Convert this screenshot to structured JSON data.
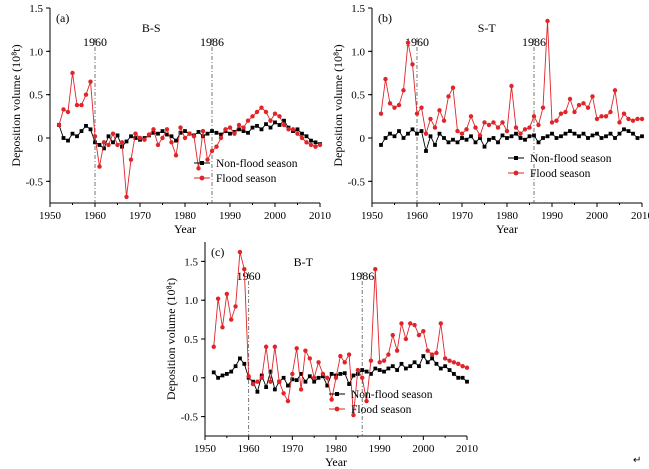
{
  "figure": {
    "trailing_mark": "↵"
  },
  "chart_data": [
    {
      "type": "line",
      "panel": "(a)",
      "title": "B-S",
      "xlabel": "Year",
      "ylabel": "Deposition volume (10⁸t)",
      "xlim": [
        1950,
        2010
      ],
      "ylim": [
        -0.75,
        1.5
      ],
      "xticks": [
        1950,
        1960,
        1970,
        1980,
        1990,
        2000,
        2010
      ],
      "yticks": [
        -0.5,
        0,
        0.5,
        1.0,
        1.5
      ],
      "ytick_labels": [
        "-0.5",
        "0",
        "0.5",
        "1.0",
        "1.5"
      ],
      "annotations": [
        {
          "x": 1960,
          "label": "1960"
        },
        {
          "x": 1986,
          "label": "1986"
        }
      ],
      "legend_position": "lower-right",
      "series": [
        {
          "name": "Non-flood season",
          "color": "#000000",
          "marker": "square",
          "x": [
            1952,
            1953,
            1954,
            1955,
            1956,
            1957,
            1958,
            1959,
            1960,
            1961,
            1962,
            1963,
            1964,
            1965,
            1966,
            1967,
            1968,
            1969,
            1970,
            1971,
            1972,
            1973,
            1974,
            1975,
            1976,
            1977,
            1978,
            1979,
            1980,
            1981,
            1982,
            1983,
            1984,
            1985,
            1986,
            1987,
            1988,
            1989,
            1990,
            1991,
            1992,
            1993,
            1994,
            1995,
            1996,
            1997,
            1998,
            1999,
            2000,
            2001,
            2002,
            2003,
            2004,
            2005,
            2006,
            2007,
            2008,
            2009,
            2010
          ],
          "y": [
            0.15,
            0.0,
            -0.03,
            0.05,
            0.02,
            0.08,
            0.14,
            0.1,
            -0.05,
            -0.08,
            -0.12,
            0.02,
            -0.05,
            0.03,
            -0.1,
            -0.04,
            0.02,
            0.0,
            -0.02,
            0.0,
            0.03,
            0.06,
            0.05,
            0.08,
            0.04,
            0.02,
            -0.03,
            0.06,
            0.08,
            0.05,
            0.03,
            0.07,
            0.02,
            0.05,
            0.08,
            0.06,
            0.04,
            0.08,
            0.05,
            0.07,
            0.1,
            0.08,
            0.06,
            0.12,
            0.14,
            0.1,
            0.16,
            0.12,
            0.18,
            0.15,
            0.2,
            0.12,
            0.08,
            0.1,
            0.05,
            0.02,
            -0.03,
            -0.05,
            -0.07
          ]
        },
        {
          "name": "Flood season",
          "color": "#e0252a",
          "marker": "circle",
          "x": [
            1952,
            1953,
            1954,
            1955,
            1956,
            1957,
            1958,
            1959,
            1960,
            1961,
            1962,
            1963,
            1964,
            1965,
            1966,
            1967,
            1968,
            1969,
            1970,
            1971,
            1972,
            1973,
            1974,
            1975,
            1976,
            1977,
            1978,
            1979,
            1980,
            1981,
            1982,
            1983,
            1984,
            1985,
            1986,
            1987,
            1988,
            1989,
            1990,
            1991,
            1992,
            1993,
            1994,
            1995,
            1996,
            1997,
            1998,
            1999,
            2000,
            2001,
            2002,
            2003,
            2004,
            2005,
            2006,
            2007,
            2008,
            2009,
            2010
          ],
          "y": [
            0.15,
            0.33,
            0.3,
            0.75,
            0.38,
            0.38,
            0.5,
            0.65,
            0.02,
            -0.33,
            -0.05,
            -0.08,
            0.05,
            -0.08,
            -0.05,
            -0.68,
            -0.25,
            0.05,
            0.0,
            -0.02,
            0.04,
            0.1,
            -0.08,
            0.0,
            0.1,
            -0.05,
            -0.2,
            0.12,
            0.0,
            0.05,
            0.02,
            -0.35,
            0.08,
            -0.25,
            -0.15,
            -0.1,
            0.0,
            0.1,
            0.12,
            0.05,
            0.15,
            0.12,
            0.2,
            0.25,
            0.3,
            0.35,
            0.3,
            0.2,
            0.28,
            0.25,
            0.15,
            0.1,
            0.1,
            0.05,
            0.0,
            -0.05,
            -0.08,
            -0.1,
            -0.08
          ]
        }
      ]
    },
    {
      "type": "line",
      "panel": "(b)",
      "title": "S-T",
      "xlabel": "Year",
      "ylabel": "Deposition volume (10⁸t)",
      "xlim": [
        1950,
        2010
      ],
      "ylim": [
        -0.75,
        1.5
      ],
      "xticks": [
        1950,
        1960,
        1970,
        1980,
        1990,
        2000,
        2010
      ],
      "yticks": [
        -0.5,
        0,
        0.5,
        1.0,
        1.5
      ],
      "ytick_labels": [
        "-0.5",
        "0",
        "0.5",
        "1.0",
        "1.5"
      ],
      "annotations": [
        {
          "x": 1960,
          "label": "1960"
        },
        {
          "x": 1986,
          "label": "1986"
        }
      ],
      "legend_position": "lower-right",
      "series": [
        {
          "name": "Non-flood season",
          "color": "#000000",
          "marker": "square",
          "x": [
            1952,
            1953,
            1954,
            1955,
            1956,
            1957,
            1958,
            1959,
            1960,
            1961,
            1962,
            1963,
            1964,
            1965,
            1966,
            1967,
            1968,
            1969,
            1970,
            1971,
            1972,
            1973,
            1974,
            1975,
            1976,
            1977,
            1978,
            1979,
            1980,
            1981,
            1982,
            1983,
            1984,
            1985,
            1986,
            1987,
            1988,
            1989,
            1990,
            1991,
            1992,
            1993,
            1994,
            1995,
            1996,
            1997,
            1998,
            1999,
            2000,
            2001,
            2002,
            2003,
            2004,
            2005,
            2006,
            2007,
            2008,
            2009,
            2010
          ],
          "y": [
            -0.08,
            0.0,
            0.05,
            0.02,
            0.08,
            0.0,
            0.05,
            0.1,
            0.05,
            0.08,
            -0.15,
            0.02,
            -0.08,
            0.05,
            0.0,
            -0.05,
            -0.02,
            -0.05,
            0.0,
            -0.02,
            0.02,
            -0.05,
            0.0,
            -0.1,
            -0.02,
            0.0,
            -0.05,
            0.03,
            0.0,
            0.02,
            0.05,
            0.0,
            -0.02,
            0.02,
            0.03,
            -0.05,
            0.0,
            0.02,
            0.05,
            0.0,
            0.02,
            0.05,
            0.08,
            0.05,
            0.02,
            0.05,
            0.0,
            0.03,
            0.05,
            0.0,
            0.02,
            0.05,
            0.0,
            0.05,
            0.1,
            0.08,
            0.05,
            0.0,
            0.02
          ]
        },
        {
          "name": "Flood season",
          "color": "#e0252a",
          "marker": "circle",
          "x": [
            1952,
            1953,
            1954,
            1955,
            1956,
            1957,
            1958,
            1959,
            1960,
            1961,
            1962,
            1963,
            1964,
            1965,
            1966,
            1967,
            1968,
            1969,
            1970,
            1971,
            1972,
            1973,
            1974,
            1975,
            1976,
            1977,
            1978,
            1979,
            1980,
            1981,
            1982,
            1983,
            1984,
            1985,
            1986,
            1987,
            1988,
            1989,
            1990,
            1991,
            1992,
            1993,
            1994,
            1995,
            1996,
            1997,
            1998,
            1999,
            2000,
            2001,
            2002,
            2003,
            2004,
            2005,
            2006,
            2007,
            2008,
            2009,
            2010
          ],
          "y": [
            0.28,
            0.68,
            0.4,
            0.35,
            0.38,
            0.55,
            1.1,
            0.85,
            0.28,
            0.35,
            0.05,
            0.22,
            0.12,
            0.32,
            0.2,
            0.48,
            0.58,
            0.08,
            0.05,
            0.1,
            0.25,
            0.12,
            0.03,
            0.18,
            0.15,
            0.18,
            0.12,
            0.18,
            0.08,
            0.6,
            0.12,
            0.05,
            0.1,
            0.12,
            0.25,
            0.15,
            0.35,
            1.35,
            0.18,
            0.2,
            0.28,
            0.3,
            0.45,
            0.3,
            0.38,
            0.4,
            0.35,
            0.48,
            0.22,
            0.25,
            0.25,
            0.3,
            0.55,
            0.18,
            0.28,
            0.22,
            0.2,
            0.22,
            0.22
          ]
        }
      ]
    },
    {
      "type": "line",
      "panel": "(c)",
      "title": "B-T",
      "xlabel": "Year",
      "ylabel": "Deposition volume (10⁸t)",
      "xlim": [
        1950,
        2010
      ],
      "ylim": [
        -0.75,
        1.75
      ],
      "xticks": [
        1950,
        1960,
        1970,
        1980,
        1990,
        2000,
        2010
      ],
      "yticks": [
        -0.5,
        0,
        0.5,
        1.0,
        1.5
      ],
      "ytick_labels": [
        "-0.5",
        "0",
        "0.5",
        "1.0",
        "1.5"
      ],
      "annotations": [
        {
          "x": 1960,
          "label": "1960"
        },
        {
          "x": 1986,
          "label": "1986"
        }
      ],
      "legend_position": "lower-right",
      "series": [
        {
          "name": "Non-flood season",
          "color": "#000000",
          "marker": "square",
          "x": [
            1952,
            1953,
            1954,
            1955,
            1956,
            1957,
            1958,
            1959,
            1960,
            1961,
            1962,
            1963,
            1964,
            1965,
            1966,
            1967,
            1968,
            1969,
            1970,
            1971,
            1972,
            1973,
            1974,
            1975,
            1976,
            1977,
            1978,
            1979,
            1980,
            1981,
            1982,
            1983,
            1984,
            1985,
            1986,
            1987,
            1988,
            1989,
            1990,
            1991,
            1992,
            1993,
            1994,
            1995,
            1996,
            1997,
            1998,
            1999,
            2000,
            2001,
            2002,
            2003,
            2004,
            2005,
            2006,
            2007,
            2008,
            2009,
            2010
          ],
          "y": [
            0.07,
            0.0,
            0.03,
            0.05,
            0.08,
            0.15,
            0.25,
            0.18,
            0.0,
            -0.05,
            -0.18,
            0.03,
            -0.12,
            0.08,
            -0.15,
            -0.05,
            0.0,
            -0.1,
            -0.02,
            -0.03,
            0.05,
            -0.05,
            0.02,
            -0.05,
            0.0,
            0.02,
            -0.1,
            0.05,
            0.03,
            0.05,
            0.06,
            -0.08,
            0.03,
            0.05,
            0.1,
            0.08,
            0.05,
            0.12,
            0.1,
            0.08,
            0.12,
            0.15,
            0.1,
            0.18,
            0.12,
            0.15,
            0.2,
            0.15,
            0.28,
            0.2,
            0.25,
            0.18,
            0.12,
            0.15,
            0.1,
            0.05,
            0.0,
            0.0,
            -0.05
          ]
        },
        {
          "name": "Flood season",
          "color": "#e0252a",
          "marker": "circle",
          "x": [
            1952,
            1953,
            1954,
            1955,
            1956,
            1957,
            1958,
            1959,
            1960,
            1961,
            1962,
            1963,
            1964,
            1965,
            1966,
            1967,
            1968,
            1969,
            1970,
            1971,
            1972,
            1973,
            1974,
            1975,
            1976,
            1977,
            1978,
            1979,
            1980,
            1981,
            1982,
            1983,
            1984,
            1985,
            1986,
            1987,
            1988,
            1989,
            1990,
            1991,
            1992,
            1993,
            1994,
            1995,
            1996,
            1997,
            1998,
            1999,
            2000,
            2001,
            2002,
            2003,
            2004,
            2005,
            2006,
            2007,
            2008,
            2009,
            2010
          ],
          "y": [
            0.4,
            1.02,
            0.65,
            1.08,
            0.75,
            0.92,
            1.62,
            1.4,
            0.02,
            -0.08,
            -0.05,
            0.0,
            0.4,
            -0.05,
            0.4,
            -0.05,
            -0.2,
            -0.3,
            0.05,
            0.38,
            -0.15,
            0.35,
            0.25,
            0.0,
            0.2,
            0.05,
            0.0,
            -0.28,
            0.0,
            0.28,
            0.2,
            0.3,
            -0.48,
            0.1,
            0.0,
            -0.3,
            0.22,
            1.4,
            0.2,
            0.22,
            0.3,
            0.55,
            0.35,
            0.7,
            0.5,
            0.7,
            0.68,
            0.55,
            0.6,
            0.35,
            0.3,
            0.32,
            0.7,
            0.25,
            0.22,
            0.2,
            0.18,
            0.15,
            0.13
          ]
        }
      ]
    }
  ]
}
